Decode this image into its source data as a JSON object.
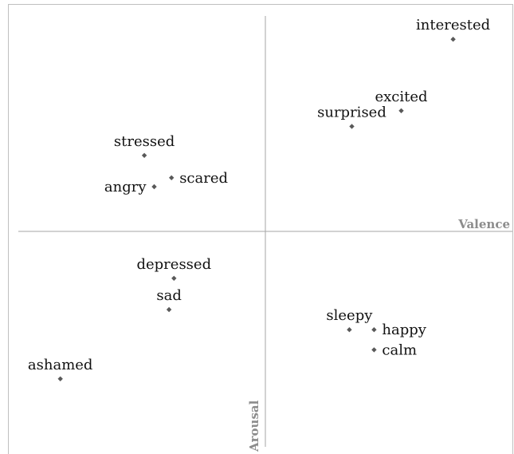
{
  "chart_data": {
    "type": "scatter",
    "x_label": "Valence",
    "y_label": "Arousal",
    "labels": [
      "interested",
      "excited",
      "surprised",
      "stressed",
      "scared",
      "angry",
      "depressed",
      "sad",
      "ashamed",
      "sleepy",
      "happy",
      "calm"
    ],
    "x": [
      0.76,
      0.55,
      0.35,
      -0.49,
      -0.38,
      -0.45,
      -0.37,
      -0.39,
      -0.83,
      0.34,
      0.44,
      0.44
    ],
    "values": [
      0.86,
      0.54,
      0.47,
      0.34,
      0.24,
      0.2,
      -0.21,
      -0.35,
      -0.66,
      -0.44,
      -0.44,
      -0.53
    ],
    "color": "#595959",
    "xlim": [
      -1,
      1
    ],
    "ylim": [
      -1,
      1
    ]
  }
}
